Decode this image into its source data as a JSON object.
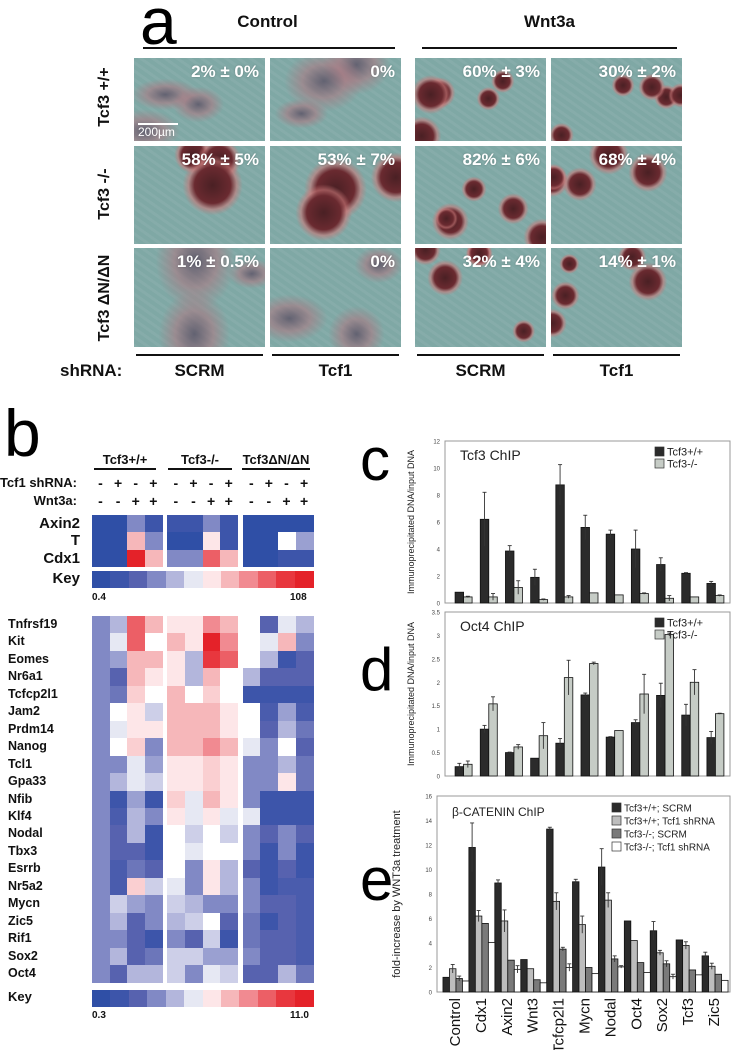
{
  "panel_a": {
    "letter": "a",
    "conditions": [
      "Control",
      "Wnt3a"
    ],
    "genotypes": [
      "Tcf3 +/+",
      "Tcf3 -/-",
      "Tcf3 ΔN/ΔN"
    ],
    "shrna_label": "shRNA:",
    "shrna_columns": [
      "SCRM",
      "Tcf1",
      "SCRM",
      "Tcf1"
    ],
    "scale_bar": "200µm",
    "percentages": [
      [
        "2% ± 0%",
        "0%",
        "60% ± 3%",
        "30% ± 2%"
      ],
      [
        "58% ± 5%",
        "53% ± 7%",
        "82% ± 6%",
        "68% ± 4%"
      ],
      [
        "1% ± 0.5%",
        "0%",
        "32% ± 4%",
        "14% ± 1%"
      ]
    ]
  },
  "panel_b": {
    "letter": "b",
    "groups": [
      "Tcf3+/+",
      "Tcf3-/-",
      "Tcf3ΔN/ΔN"
    ],
    "tcf1_label": "Tcf1 shRNA:",
    "wnt3a_label": "Wnt3a:",
    "tcf1_signs": [
      "-",
      "+",
      "-",
      "+",
      "-",
      "+",
      "-",
      "+",
      "-",
      "+",
      "-",
      "+"
    ],
    "wnt3a_signs": [
      "-",
      "-",
      "+",
      "+",
      "-",
      "-",
      "+",
      "+",
      "-",
      "-",
      "+",
      "+"
    ],
    "color_scale": [
      "#2f4fa6",
      "#3d55aa",
      "#5762af",
      "#8189c5",
      "#b3b6dc",
      "#e6e8f3",
      "#fde6e8",
      "#f6b7ba",
      "#f18a91",
      "#ec5f66",
      "#e8373e",
      "#e42229"
    ],
    "top_heatmap": {
      "rows": [
        {
          "gene": "Axin2",
          "values": [
            0,
            0,
            3,
            1,
            1,
            1,
            3,
            1,
            0,
            0,
            0,
            0
          ]
        },
        {
          "gene": "T",
          "values": [
            0,
            0,
            7,
            3,
            0,
            0,
            6,
            1,
            0,
            0,
            5.5,
            3.5
          ]
        },
        {
          "gene": "Cdx1",
          "values": [
            0,
            0,
            11,
            7,
            3,
            3,
            9,
            7,
            0,
            0,
            1,
            1
          ]
        }
      ],
      "key_label": "Key",
      "key_min": "0.4",
      "key_max": "108"
    },
    "bottom_heatmap": {
      "rows": [
        {
          "gene": "Tnfrsf19",
          "values": [
            3,
            4,
            9,
            7,
            6,
            6,
            8,
            7,
            5.5,
            2,
            5,
            4
          ]
        },
        {
          "gene": "Kit",
          "values": [
            3,
            5,
            9,
            5.5,
            7,
            6,
            11,
            8,
            5.5,
            5,
            7,
            3
          ]
        },
        {
          "gene": "Eomes",
          "values": [
            3,
            3.5,
            7,
            7,
            6,
            4,
            10,
            9,
            5.5,
            4,
            1,
            2
          ]
        },
        {
          "gene": "Nr6a1",
          "values": [
            3,
            2,
            7,
            6,
            6,
            4,
            7,
            5.5,
            4,
            2,
            2,
            2
          ]
        },
        {
          "gene": "Tcfcp2l1",
          "values": [
            3,
            2.5,
            6.5,
            5.5,
            7,
            5.5,
            6.5,
            5.5,
            1,
            1,
            1,
            1
          ]
        },
        {
          "gene": "Jam2",
          "values": [
            3,
            5.5,
            6,
            4.5,
            7,
            7,
            7,
            6,
            5.5,
            1.5,
            3.5,
            1.5
          ]
        },
        {
          "gene": "Prdm14",
          "values": [
            3,
            5,
            6,
            6,
            7,
            7,
            7,
            6,
            5.5,
            2,
            4,
            2.5
          ]
        },
        {
          "gene": "Nanog",
          "values": [
            3,
            5.5,
            6.5,
            3,
            7,
            7,
            8,
            7,
            5,
            3,
            5.5,
            2
          ]
        },
        {
          "gene": "Tcl1",
          "values": [
            3,
            3,
            5,
            3.5,
            6,
            6,
            6.5,
            6,
            3,
            3,
            4,
            2.5
          ]
        },
        {
          "gene": "Gpa33",
          "values": [
            3,
            4,
            5,
            4.5,
            6,
            6,
            6.5,
            6,
            3,
            3,
            6,
            2.5
          ]
        },
        {
          "gene": "Nfib",
          "values": [
            3,
            1,
            3.5,
            1,
            6.5,
            5,
            7,
            6,
            3,
            1,
            1,
            1
          ]
        },
        {
          "gene": "Klf4",
          "values": [
            3,
            1.5,
            4,
            3,
            6,
            5,
            6,
            5,
            5,
            1,
            1,
            1
          ]
        },
        {
          "gene": "Nodal",
          "values": [
            3,
            2,
            4,
            1,
            5.5,
            4.5,
            5.5,
            4.5,
            3,
            2,
            3,
            2
          ]
        },
        {
          "gene": "Tbx3",
          "values": [
            3,
            2,
            2,
            1,
            5.5,
            5,
            5.5,
            5.5,
            3,
            1,
            3,
            1
          ]
        },
        {
          "gene": "Esrrb",
          "values": [
            3,
            1.5,
            2.5,
            2,
            5.5,
            3,
            6,
            4,
            2,
            1,
            2,
            1
          ]
        },
        {
          "gene": "Nr5a2",
          "values": [
            3,
            1.5,
            6.5,
            4.5,
            5,
            3,
            6,
            4,
            3,
            1,
            1.5,
            1.5
          ]
        },
        {
          "gene": "Mycn",
          "values": [
            3,
            4.5,
            3.5,
            3,
            4.5,
            4,
            3,
            3,
            3,
            2,
            2,
            1.5
          ]
        },
        {
          "gene": "Zic5",
          "values": [
            3,
            4,
            2,
            3,
            4,
            4.5,
            5.5,
            2,
            2.5,
            1,
            2,
            1.5
          ]
        },
        {
          "gene": "Rif1",
          "values": [
            3,
            3,
            2,
            1,
            3,
            2,
            4.5,
            1,
            2.5,
            2,
            2,
            1.5
          ]
        },
        {
          "gene": "Sox2",
          "values": [
            3,
            4,
            2,
            2.5,
            4.5,
            4.5,
            3.5,
            3.5,
            3,
            2,
            2,
            1.5
          ]
        },
        {
          "gene": "Oct4",
          "values": [
            3,
            2,
            4,
            4,
            4.5,
            3,
            5,
            4.5,
            2,
            2,
            4,
            2.5
          ]
        }
      ],
      "key_label": "Key",
      "key_min": "0.3",
      "key_max": "11.0"
    }
  },
  "chart_data": [
    {
      "panel": "c",
      "type": "bar",
      "title": "Tcf3 ChIP",
      "ylabel": "Immunoprecipitated DNA/input DNA",
      "ylim": [
        0,
        12
      ],
      "yticks": [
        "0",
        "2",
        "4",
        "6",
        "8",
        "10",
        "12"
      ],
      "legend_position": "top-right",
      "categories": [
        "Control",
        "Cdx1",
        "Axin2",
        "Wnt3",
        "Tcfcp2l1",
        "Mycn",
        "Nodal",
        "Oct4",
        "Sox2",
        "Tcf3",
        "Zic5"
      ],
      "series": [
        {
          "name": "Tcf3+/+",
          "color": "#2b2b2b",
          "values": [
            0.8,
            6.2,
            3.85,
            1.9,
            8.75,
            5.6,
            5.1,
            4.0,
            2.85,
            2.2,
            1.45
          ],
          "errors": [
            0,
            2.0,
            0.4,
            0.6,
            1.5,
            0.9,
            0.3,
            1.4,
            0.5,
            0.05,
            0.15
          ]
        },
        {
          "name": "Tcf3-/-",
          "color": "#c6ccc6",
          "values": [
            0.45,
            0.45,
            1.15,
            0.25,
            0.45,
            0.75,
            0.6,
            0.7,
            0.35,
            0.45,
            0.55
          ],
          "errors": [
            0.05,
            0.25,
            0.5,
            0.05,
            0.1,
            0,
            0,
            0.05,
            0.2,
            0,
            0.05
          ]
        }
      ]
    },
    {
      "panel": "d",
      "type": "bar",
      "title": "Oct4 ChIP",
      "ylabel": "Immunoprecipitated DNA/input DNA",
      "ylim": [
        0,
        3.5
      ],
      "yticks": [
        "0",
        "0.5",
        "1",
        "1.5",
        "2",
        "2.5",
        "3",
        "3.5"
      ],
      "legend_position": "top-right",
      "categories": [
        "Control",
        "Cdx1",
        "Axin2",
        "Wnt3",
        "Tcfcp2l1",
        "Mycn",
        "Nodal",
        "Oct4",
        "Sox2",
        "Tcf3",
        "Zic5"
      ],
      "series": [
        {
          "name": "Tcf3+/+",
          "color": "#2b2b2b",
          "values": [
            0.2,
            1.0,
            0.5,
            0.38,
            0.7,
            1.73,
            0.83,
            1.14,
            1.72,
            1.3,
            0.82
          ],
          "errors": [
            0.07,
            0.08,
            0.01,
            0,
            0.1,
            0.04,
            0.01,
            0.06,
            0.26,
            0.23,
            0.13
          ]
        },
        {
          "name": "Tcf3-/-",
          "color": "#c6ccc6",
          "values": [
            0.25,
            1.54,
            0.62,
            0.86,
            2.1,
            2.4,
            0.97,
            1.75,
            3.02,
            2.0,
            1.33
          ],
          "errors": [
            0.07,
            0.15,
            0.05,
            0.28,
            0.37,
            0.03,
            0,
            0.42,
            0.03,
            0.27,
            0.01
          ]
        }
      ]
    },
    {
      "panel": "e",
      "type": "bar",
      "title": "β-CATENIN ChIP",
      "ylabel": "fold-increase by WNT3a treatment",
      "ylim": [
        0,
        16
      ],
      "yticks": [
        "0",
        "2",
        "4",
        "6",
        "8",
        "10",
        "12",
        "14",
        "16"
      ],
      "legend_position": "top-right",
      "categories": [
        "Control",
        "Cdx1",
        "Axin2",
        "Wnt3",
        "Tcfcp2l1",
        "Mycn",
        "Nodal",
        "Oct4",
        "Sox2",
        "Tcf3",
        "Zic5"
      ],
      "series": [
        {
          "name": "Tcf3+/+; SCRM",
          "color": "#2b2b2b",
          "values": [
            1.2,
            11.8,
            8.9,
            2.65,
            13.3,
            9.0,
            10.2,
            5.8,
            5.0,
            4.25,
            2.95
          ],
          "errors": [
            0,
            2.0,
            0.25,
            0,
            0.15,
            0.2,
            1.5,
            0,
            0.75,
            0,
            0.3
          ]
        },
        {
          "name": "Tcf3+/+; Tcf1 shRNA",
          "color": "#bdbdbd",
          "values": [
            1.9,
            6.2,
            5.8,
            1.9,
            7.4,
            5.5,
            7.5,
            4.2,
            3.2,
            3.8,
            2.1
          ],
          "errors": [
            0.35,
            0.45,
            0.9,
            0,
            0.7,
            0.7,
            0.6,
            0,
            0.2,
            0.3,
            0.25
          ]
        },
        {
          "name": "Tcf3-/-; SCRM",
          "color": "#7a7a7a",
          "values": [
            1.1,
            5.6,
            2.6,
            1.0,
            3.5,
            2.0,
            2.7,
            2.4,
            2.3,
            1.8,
            1.45
          ],
          "errors": [
            0.2,
            0,
            0,
            0,
            0.15,
            0,
            0.25,
            0,
            0.25,
            0,
            0
          ]
        },
        {
          "name": "Tcf3-/-; Tcf1 shRNA",
          "color": "#ffffff",
          "values": [
            0.9,
            4.05,
            1.85,
            0.75,
            2.0,
            1.5,
            2.05,
            1.6,
            1.25,
            1.4,
            0.95
          ],
          "errors": [
            0,
            0,
            0.3,
            0,
            0.3,
            0,
            0.1,
            0,
            0.2,
            0,
            0
          ]
        }
      ]
    }
  ]
}
